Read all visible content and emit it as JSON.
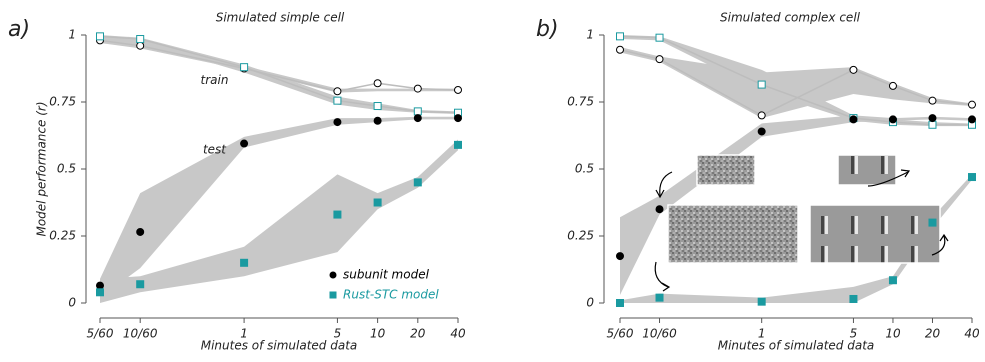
{
  "chart_data": [
    {
      "type": "line",
      "panel_label": "a)",
      "title": "Simulated simple cell",
      "y_label": "Model performance (r)",
      "x_label": "Minutes of simulated data",
      "log_x": true,
      "x": [
        0.08333,
        0.16667,
        1,
        5,
        10,
        20,
        40
      ],
      "xlim": [
        0.08333,
        40
      ],
      "xticks": [
        {
          "value": 0.08333,
          "label": "5/60"
        },
        {
          "value": 0.16667,
          "label": "10/60"
        },
        1,
        5,
        10,
        20,
        40
      ],
      "ylim": [
        0,
        1
      ],
      "yticks": [
        0,
        0.25,
        0.5,
        0.75,
        1
      ],
      "band_color": "#c8c8c8",
      "legend": "lower right",
      "annotations": [
        {
          "text": "train",
          "x": 0.6,
          "y": 0.83
        },
        {
          "text": "test",
          "x": 0.6,
          "y": 0.57
        }
      ],
      "series": [
        {
          "marker": "circle",
          "filled": false,
          "color": "#000000",
          "values": [
            0.98,
            0.96,
            0.875,
            0.79,
            0.82,
            0.8,
            0.795
          ],
          "band_low": [
            0.97,
            0.95,
            0.87,
            0.785,
            0.79,
            0.79,
            0.79
          ],
          "band_high": [
            0.99,
            0.975,
            0.885,
            0.8,
            0.8,
            0.8,
            0.8
          ]
        },
        {
          "marker": "square",
          "filled": false,
          "color": "#1a9aa0",
          "values": [
            0.995,
            0.985,
            0.88,
            0.755,
            0.735,
            0.715,
            0.71
          ],
          "band_low": [
            0.985,
            0.975,
            0.86,
            0.74,
            0.72,
            0.71,
            0.705
          ],
          "band_high": [
            1.0,
            0.99,
            0.89,
            0.77,
            0.745,
            0.72,
            0.715
          ]
        },
        {
          "name": "subunit model",
          "marker": "circle",
          "filled": true,
          "color": "#000000",
          "values": [
            0.065,
            0.265,
            0.595,
            0.675,
            0.68,
            0.69,
            0.69
          ],
          "band_low": [
            0.02,
            0.13,
            0.58,
            0.665,
            0.675,
            0.685,
            0.685
          ],
          "band_high": [
            0.09,
            0.41,
            0.62,
            0.69,
            0.69,
            0.695,
            0.695
          ]
        },
        {
          "name": "Rust-STC model",
          "marker": "square",
          "filled": true,
          "color": "#1a9aa0",
          "values": [
            0.04,
            0.07,
            0.15,
            0.33,
            0.375,
            0.45,
            0.59
          ],
          "band_low": [
            0.0,
            0.04,
            0.1,
            0.19,
            0.35,
            0.43,
            0.57
          ],
          "band_high": [
            0.09,
            0.1,
            0.21,
            0.48,
            0.41,
            0.47,
            0.61
          ]
        }
      ]
    },
    {
      "type": "line",
      "panel_label": "b)",
      "title": "Simulated complex cell",
      "x_label": "Minutes of simulated data",
      "log_x": true,
      "x": [
        0.08333,
        0.16667,
        1,
        5,
        10,
        20,
        40
      ],
      "xlim": [
        0.08333,
        40
      ],
      "xticks": [
        {
          "value": 0.08333,
          "label": "5/60"
        },
        {
          "value": 0.16667,
          "label": "10/60"
        },
        1,
        5,
        10,
        20,
        40
      ],
      "ylim": [
        0,
        1
      ],
      "yticks": [
        0,
        0.25,
        0.5,
        0.75,
        1
      ],
      "band_color": "#c8c8c8",
      "series": [
        {
          "marker": "circle",
          "filled": false,
          "color": "#000000",
          "values": [
            0.945,
            0.91,
            0.7,
            0.87,
            0.81,
            0.755,
            0.74
          ],
          "band_low": [
            0.935,
            0.9,
            0.69,
            0.78,
            0.76,
            0.745,
            0.735
          ],
          "band_high": [
            0.955,
            0.92,
            0.86,
            0.88,
            0.82,
            0.765,
            0.745
          ]
        },
        {
          "marker": "square",
          "filled": false,
          "color": "#1a9aa0",
          "values": [
            0.995,
            0.99,
            0.815,
            0.69,
            0.675,
            0.665,
            0.665
          ],
          "band_low": [
            0.985,
            0.98,
            0.79,
            0.68,
            0.665,
            0.66,
            0.66
          ],
          "band_high": [
            1.0,
            0.995,
            0.87,
            0.7,
            0.685,
            0.675,
            0.67
          ]
        },
        {
          "marker": "circle",
          "filled": true,
          "color": "#000000",
          "values": [
            0.175,
            0.35,
            0.64,
            0.685,
            0.685,
            0.69,
            0.685
          ],
          "band_low": [
            0.03,
            0.33,
            0.62,
            0.675,
            0.68,
            0.685,
            0.68
          ],
          "band_high": [
            0.32,
            0.4,
            0.67,
            0.7,
            0.69,
            0.695,
            0.69
          ]
        },
        {
          "marker": "square",
          "filled": true,
          "color": "#1a9aa0",
          "values": [
            0.0,
            0.02,
            0.005,
            0.015,
            0.085,
            0.3,
            0.47
          ],
          "band_low": [
            0.0,
            0.0,
            0.0,
            0.0,
            0.07,
            0.28,
            0.46
          ],
          "band_high": [
            0.01,
            0.035,
            0.02,
            0.06,
            0.1,
            0.32,
            0.48
          ]
        }
      ]
    }
  ]
}
